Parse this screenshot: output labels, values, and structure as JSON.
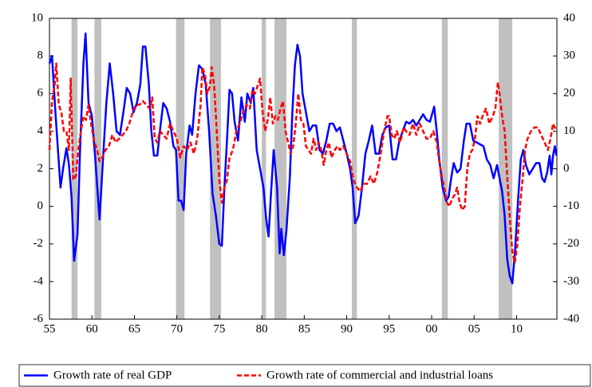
{
  "chart_data": {
    "type": "line",
    "xlim": [
      1955,
      2014.75
    ],
    "xticks": [
      {
        "value": 1955,
        "label": "55"
      },
      {
        "value": 1960,
        "label": "60"
      },
      {
        "value": 1965,
        "label": "65"
      },
      {
        "value": 1970,
        "label": "70"
      },
      {
        "value": 1975,
        "label": "75"
      },
      {
        "value": 1980,
        "label": "80"
      },
      {
        "value": 1985,
        "label": "85"
      },
      {
        "value": 1990,
        "label": "90"
      },
      {
        "value": 1995,
        "label": "95"
      },
      {
        "value": 2000,
        "label": "00"
      },
      {
        "value": 2005,
        "label": "05"
      },
      {
        "value": 2010,
        "label": "10"
      }
    ],
    "ylim": [
      -6,
      10
    ],
    "yticks": [
      -6,
      -4,
      -2,
      0,
      2,
      4,
      6,
      8,
      10
    ],
    "y2lim": [
      -40,
      40
    ],
    "y2ticks": [
      -40,
      -30,
      -20,
      -10,
      0,
      10,
      20,
      30,
      40
    ],
    "recession_color": "#c0c0c0",
    "recessions": [
      [
        1957.6,
        1958.3
      ],
      [
        1960.3,
        1961.1
      ],
      [
        1969.9,
        1970.9
      ],
      [
        1973.9,
        1975.2
      ],
      [
        1980.0,
        1980.5
      ],
      [
        1981.5,
        1982.9
      ],
      [
        1990.6,
        1991.2
      ],
      [
        2001.2,
        2001.9
      ],
      [
        2007.9,
        2009.5
      ]
    ],
    "series": [
      {
        "name": "Growth rate of real GDP",
        "color": "#0000ff",
        "dash": false,
        "axis": "y",
        "x": [
          1955.0,
          1955.3,
          1955.7,
          1956.0,
          1956.3,
          1956.6,
          1957.0,
          1957.3,
          1957.6,
          1957.9,
          1958.3,
          1958.6,
          1959.0,
          1959.25,
          1959.6,
          1960.0,
          1960.4,
          1960.9,
          1961.3,
          1961.7,
          1962.1,
          1962.5,
          1962.9,
          1963.3,
          1963.7,
          1964.1,
          1964.5,
          1964.9,
          1965.3,
          1965.7,
          1966.0,
          1966.3,
          1966.7,
          1967.0,
          1967.3,
          1967.7,
          1968.0,
          1968.4,
          1968.8,
          1969.2,
          1969.6,
          1969.9,
          1970.2,
          1970.5,
          1970.8,
          1971.1,
          1971.5,
          1971.8,
          1972.2,
          1972.6,
          1973.0,
          1973.4,
          1973.8,
          1974.2,
          1974.6,
          1975.0,
          1975.3,
          1975.6,
          1975.9,
          1976.2,
          1976.5,
          1976.8,
          1977.2,
          1977.6,
          1978.0,
          1978.3,
          1978.7,
          1979.0,
          1979.4,
          1979.8,
          1980.2,
          1980.5,
          1980.8,
          1981.1,
          1981.4,
          1981.8,
          1982.1,
          1982.3,
          1982.6,
          1982.9,
          1983.3,
          1983.6,
          1983.9,
          1984.2,
          1984.5,
          1984.8,
          1985.2,
          1985.6,
          1986.0,
          1986.4,
          1986.8,
          1987.2,
          1987.6,
          1988.0,
          1988.4,
          1988.8,
          1989.2,
          1989.6,
          1990.0,
          1990.4,
          1990.7,
          1991.0,
          1991.4,
          1991.8,
          1992.2,
          1992.6,
          1993.0,
          1993.4,
          1993.8,
          1994.2,
          1994.6,
          1995.0,
          1995.4,
          1995.8,
          1996.2,
          1996.6,
          1997.0,
          1997.4,
          1997.8,
          1998.2,
          1998.6,
          1999.0,
          1999.4,
          1999.8,
          2000.3,
          2000.6,
          2000.9,
          2001.3,
          2001.7,
          2002.0,
          2002.3,
          2002.6,
          2003.0,
          2003.4,
          2003.8,
          2004.1,
          2004.5,
          2004.9,
          2005.3,
          2005.7,
          2006.1,
          2006.5,
          2006.9,
          2007.3,
          2007.7,
          2008.0,
          2008.3,
          2008.6,
          2008.9,
          2009.2,
          2009.5,
          2009.8,
          2010.2,
          2010.5,
          2010.8,
          2011.1,
          2011.5,
          2011.9,
          2012.3,
          2012.7,
          2013.0,
          2013.3,
          2013.6,
          2013.9,
          2014.1,
          2014.3,
          2014.5,
          2014.7
        ],
        "values": [
          7.6,
          8.0,
          5,
          3,
          1.0,
          2,
          3.1,
          2.2,
          0.5,
          -2.9,
          -1.5,
          3,
          7.6,
          9.2,
          5.5,
          4.8,
          2.5,
          -0.7,
          2.5,
          5.5,
          7.6,
          6,
          4,
          3.8,
          5,
          6.3,
          6,
          5,
          5.5,
          6.5,
          8.5,
          8.5,
          6.5,
          4,
          2.7,
          2.7,
          4,
          5.5,
          5.2,
          4.5,
          3.2,
          3,
          0.3,
          0.3,
          -0.2,
          2.8,
          4.3,
          3.8,
          6,
          7.5,
          7.3,
          6.5,
          4,
          0.7,
          -0.5,
          -2.0,
          -2.1,
          1,
          3.5,
          6.2,
          6,
          4.5,
          3.5,
          5.8,
          4.5,
          6.0,
          5.5,
          6.3,
          3,
          2,
          1,
          -0.6,
          -1.6,
          0.8,
          3,
          1,
          -2.5,
          -1.2,
          -2.6,
          -1.3,
          1.5,
          5,
          7.5,
          8.6,
          8,
          6,
          5,
          4,
          4.3,
          4.3,
          3,
          2.8,
          3.5,
          4.4,
          4.4,
          4,
          4.2,
          3.5,
          2.8,
          2,
          1,
          -0.9,
          -0.5,
          1,
          2.8,
          3.5,
          4.3,
          2.8,
          2.8,
          3.8,
          4.2,
          4.3,
          2.5,
          2.5,
          3.5,
          4,
          4.5,
          4.4,
          4.6,
          4.3,
          4.6,
          4.9,
          4.6,
          4.5,
          5.3,
          4,
          2.5,
          1,
          0.3,
          0.5,
          1.5,
          2.3,
          1.8,
          2,
          3.5,
          4.4,
          4.4,
          3.5,
          3.4,
          3.3,
          3.2,
          2.5,
          2.2,
          1.5,
          2.2,
          1.5,
          0.8,
          -0.5,
          -2.8,
          -3.7,
          -4.1,
          -2.5,
          0.5,
          2.5,
          3.0,
          2.2,
          1.7,
          2.0,
          2.3,
          2.3,
          1.5,
          1.3,
          1.8,
          2.7,
          1.7,
          2.7,
          3.2,
          2.7
        ]
      },
      {
        "name": "Growth rate of commercial and industrial loans",
        "color": "#ff0000",
        "dash": true,
        "axis": "y2",
        "x": [
          1955.0,
          1955.3,
          1955.6,
          1955.8,
          1956.1,
          1956.4,
          1956.7,
          1957.0,
          1957.3,
          1957.5,
          1957.8,
          1958.1,
          1958.4,
          1958.7,
          1959.0,
          1959.3,
          1959.6,
          1959.9,
          1960.2,
          1960.6,
          1960.9,
          1961.2,
          1961.6,
          1962.0,
          1962.4,
          1962.8,
          1963.2,
          1963.6,
          1964.0,
          1964.4,
          1964.8,
          1965.2,
          1965.6,
          1966.0,
          1966.4,
          1966.8,
          1967.1,
          1967.4,
          1967.7,
          1968.0,
          1968.4,
          1968.8,
          1969.2,
          1969.6,
          1970.0,
          1970.4,
          1970.8,
          1971.2,
          1971.6,
          1972.0,
          1972.4,
          1972.8,
          1973.0,
          1973.3,
          1973.6,
          1973.9,
          1974.1,
          1974.4,
          1974.7,
          1975.0,
          1975.3,
          1975.6,
          1975.9,
          1976.2,
          1976.6,
          1977.0,
          1977.4,
          1977.8,
          1978.2,
          1978.6,
          1978.9,
          1979.2,
          1979.5,
          1979.8,
          1980.1,
          1980.4,
          1980.7,
          1981.0,
          1981.3,
          1981.6,
          1981.9,
          1982.2,
          1982.5,
          1982.8,
          1983.1,
          1983.4,
          1983.7,
          1984.0,
          1984.3,
          1984.6,
          1984.9,
          1985.2,
          1985.5,
          1985.8,
          1986.1,
          1986.4,
          1986.7,
          1987.0,
          1987.3,
          1987.6,
          1987.9,
          1988.2,
          1988.6,
          1988.9,
          1989.2,
          1989.6,
          1990.0,
          1990.4,
          1990.8,
          1991.2,
          1991.6,
          1992.0,
          1992.4,
          1992.8,
          1993.2,
          1993.6,
          1994.0,
          1994.4,
          1994.8,
          1995.0,
          1995.3,
          1995.6,
          1995.9,
          1996.3,
          1996.7,
          1997.0,
          1997.4,
          1997.8,
          1998.2,
          1998.6,
          1999.0,
          1999.4,
          1999.8,
          2000.2,
          2000.6,
          2000.9,
          2001.2,
          2001.5,
          2001.8,
          2002.1,
          2002.4,
          2002.7,
          2003.0,
          2003.3,
          2003.6,
          2003.9,
          2004.2,
          2004.5,
          2004.8,
          2005.1,
          2005.4,
          2005.7,
          2006.0,
          2006.4,
          2006.8,
          2007.2,
          2007.5,
          2007.8,
          2008.0,
          2008.3,
          2008.6,
          2008.9,
          2009.2,
          2009.5,
          2009.8,
          2010.1,
          2010.4,
          2010.7,
          2011.0,
          2011.3,
          2011.7,
          2012.1,
          2012.5,
          2012.9,
          2013.3,
          2013.7,
          2014.0,
          2014.3,
          2014.7
        ],
        "values": [
          5,
          18,
          22,
          28,
          17,
          15,
          10,
          10,
          5,
          24,
          -3,
          -2,
          5,
          10,
          14,
          13,
          17,
          12,
          8,
          5,
          2,
          3,
          5,
          6,
          9,
          7,
          8,
          9,
          10,
          12,
          15,
          17,
          17,
          18,
          17,
          16,
          19,
          8,
          7,
          10,
          9,
          8,
          12,
          10,
          8,
          3,
          6,
          5,
          7,
          4,
          8,
          17,
          27,
          25,
          20,
          22,
          27,
          22,
          10,
          -3,
          -9,
          -5,
          -3,
          3,
          5,
          10,
          12,
          15,
          17,
          16,
          21,
          20,
          22,
          24,
          15,
          10,
          13,
          19,
          12,
          14,
          13,
          16,
          18,
          10,
          7,
          4,
          6,
          12,
          20,
          13,
          12,
          6,
          5,
          4,
          8,
          5,
          7,
          5,
          1,
          5,
          7,
          3,
          5,
          6,
          5,
          6,
          4,
          2,
          -3,
          -5,
          -6,
          -4,
          -4,
          -2,
          -4,
          -1,
          4,
          10,
          14,
          14,
          9,
          8,
          10,
          7,
          11,
          10,
          9,
          12,
          9,
          12,
          10,
          8,
          8,
          10,
          7,
          2,
          -2,
          -5,
          -9,
          -10,
          -8,
          -7,
          -5,
          -9,
          -11,
          -10,
          0,
          4,
          5,
          8,
          14,
          12,
          14,
          16,
          12,
          14,
          16,
          23,
          20,
          14,
          10,
          -2,
          -13,
          -22,
          -25,
          -20,
          -10,
          -3,
          5,
          8,
          10,
          11,
          11,
          9,
          7,
          5,
          8,
          12,
          10
        ]
      }
    ]
  }
}
